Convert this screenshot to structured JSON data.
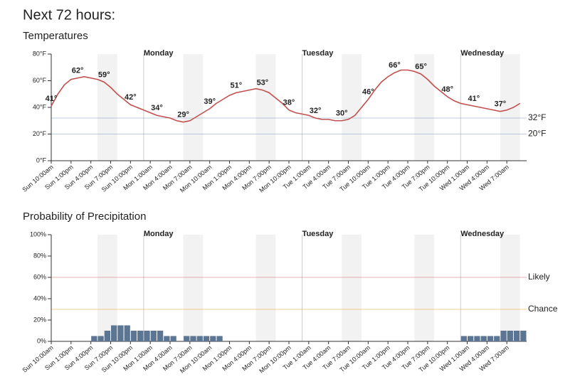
{
  "title": "Next 72 hours:",
  "chart_data": [
    {
      "type": "line",
      "title": "Temperatures",
      "categories": [
        "Sun 10:00am",
        null,
        null,
        "Sun 1:00pm",
        null,
        null,
        "Sun 4:00pm",
        null,
        null,
        "Sun 7:00pm",
        null,
        null,
        "Sun 10:00pm",
        null,
        null,
        "Mon 1:00am",
        null,
        null,
        "Mon 4:00am",
        null,
        null,
        "Mon 7:00am",
        null,
        null,
        "Mon 10:00am",
        null,
        null,
        "Mon 1:00pm",
        null,
        null,
        "Mon 4:00pm",
        null,
        null,
        "Mon 7:00pm",
        null,
        null,
        "Mon 10:00pm",
        null,
        null,
        "Tue 1:00am",
        null,
        null,
        "Tue 4:00am",
        null,
        null,
        "Tue 7:00am",
        null,
        null,
        "Tue 10:00am",
        null,
        null,
        "Tue 1:00pm",
        null,
        null,
        "Tue 4:00pm",
        null,
        null,
        "Tue 7:00pm",
        null,
        null,
        "Tue 10:00pm",
        null,
        null,
        "Wed 1:00am",
        null,
        null,
        "Wed 4:00am",
        null,
        null,
        "Wed 7:00am",
        null,
        null
      ],
      "day_labels": [
        "Monday",
        "Tuesday",
        "Wednesday"
      ],
      "series": [
        {
          "name": "Temperature",
          "color": "#c0504d",
          "values": [
            41,
            50,
            57,
            61,
            62,
            63,
            62,
            61,
            59,
            55,
            50,
            46,
            42,
            40,
            38,
            36,
            34,
            33,
            32,
            30,
            29,
            30,
            33,
            36,
            39,
            43,
            46,
            49,
            51,
            52,
            53,
            54,
            53,
            51,
            47,
            43,
            38,
            36,
            35,
            34,
            32,
            31,
            31,
            30,
            30,
            31,
            34,
            40,
            46,
            53,
            59,
            63,
            66,
            68,
            68,
            67,
            65,
            61,
            56,
            52,
            48,
            45,
            43,
            42,
            41,
            40,
            39,
            38,
            37,
            38,
            40,
            43
          ],
          "value_labels": [
            "41°",
            null,
            null,
            null,
            "62°",
            null,
            null,
            null,
            "59°",
            null,
            null,
            null,
            "42°",
            null,
            null,
            null,
            "34°",
            null,
            null,
            null,
            "29°",
            null,
            null,
            null,
            "39°",
            null,
            null,
            null,
            "51°",
            null,
            null,
            null,
            "53°",
            null,
            null,
            null,
            "38°",
            null,
            null,
            null,
            "32°",
            null,
            null,
            null,
            "30°",
            null,
            null,
            null,
            "46°",
            null,
            null,
            null,
            "66°",
            null,
            null,
            null,
            "65°",
            null,
            null,
            null,
            "48°",
            null,
            null,
            null,
            "41°",
            null,
            null,
            null,
            "37°",
            null,
            null,
            null
          ]
        }
      ],
      "ylim": [
        0,
        80
      ],
      "yticks": [
        {
          "value": 0,
          "label": "0°F"
        },
        {
          "value": 20,
          "label": "20°F"
        },
        {
          "value": 40,
          "label": "40°F"
        },
        {
          "value": 60,
          "label": "60°F"
        },
        {
          "value": 80,
          "label": "80°F"
        }
      ],
      "reference_lines": [
        {
          "value": 32,
          "label": "32°F",
          "color": "#6f93bd"
        },
        {
          "value": 20,
          "label": "20°F",
          "color": "#6f93bd"
        }
      ]
    },
    {
      "type": "bar",
      "title": "Probability of Precipitation",
      "categories": [
        "Sun 10:00am",
        null,
        null,
        "Sun 1:00pm",
        null,
        null,
        "Sun 4:00pm",
        null,
        null,
        "Sun 7:00pm",
        null,
        null,
        "Sun 10:00pm",
        null,
        null,
        "Mon 1:00am",
        null,
        null,
        "Mon 4:00am",
        null,
        null,
        "Mon 7:00am",
        null,
        null,
        "Mon 10:00am",
        null,
        null,
        "Mon 1:00pm",
        null,
        null,
        "Mon 4:00pm",
        null,
        null,
        "Mon 7:00pm",
        null,
        null,
        "Mon 10:00pm",
        null,
        null,
        "Tue 1:00am",
        null,
        null,
        "Tue 4:00am",
        null,
        null,
        "Tue 7:00am",
        null,
        null,
        "Tue 10:00am",
        null,
        null,
        "Tue 1:00pm",
        null,
        null,
        "Tue 4:00pm",
        null,
        null,
        "Tue 7:00pm",
        null,
        null,
        "Tue 10:00pm",
        null,
        null,
        "Wed 1:00am",
        null,
        null,
        "Wed 4:00am",
        null,
        null,
        "Wed 7:00am",
        null,
        null
      ],
      "day_labels": [
        "Monday",
        "Tuesday",
        "Wednesday"
      ],
      "series": [
        {
          "name": "Precipitation",
          "color": "#5b7593",
          "values": [
            0,
            0,
            0,
            0,
            0,
            0,
            5,
            5,
            10,
            15,
            15,
            15,
            10,
            10,
            10,
            10,
            10,
            5,
            5,
            0,
            5,
            5,
            5,
            5,
            5,
            5,
            0,
            0,
            0,
            0,
            0,
            0,
            0,
            0,
            0,
            0,
            0,
            0,
            0,
            0,
            0,
            0,
            0,
            0,
            0,
            0,
            0,
            0,
            0,
            0,
            0,
            0,
            0,
            0,
            0,
            0,
            0,
            0,
            0,
            0,
            0,
            0,
            5,
            5,
            5,
            5,
            5,
            5,
            10,
            10,
            10,
            10
          ]
        }
      ],
      "ylim": [
        0,
        100
      ],
      "yticks": [
        {
          "value": 0,
          "label": "0%"
        },
        {
          "value": 20,
          "label": "20%"
        },
        {
          "value": 40,
          "label": "40%"
        },
        {
          "value": 60,
          "label": "60%"
        },
        {
          "value": 80,
          "label": "80%"
        },
        {
          "value": 100,
          "label": "100%"
        }
      ],
      "reference_lines": [
        {
          "value": 60,
          "label": "Likely",
          "color": "#d9534f"
        },
        {
          "value": 30,
          "label": "Chance",
          "color": "#e8930c"
        }
      ]
    }
  ]
}
